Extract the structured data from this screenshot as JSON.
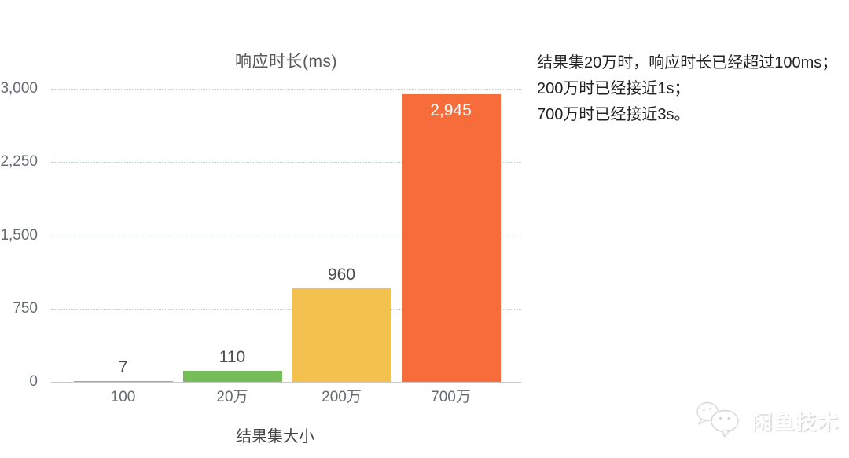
{
  "chart_data": {
    "type": "bar",
    "title": "响应时长(ms)",
    "xlabel": "结果集大小",
    "ylabel": "",
    "categories": [
      "100",
      "20万",
      "200万",
      "700万"
    ],
    "values": [
      7,
      110,
      960,
      2945
    ],
    "value_labels": [
      "7",
      "110",
      "960",
      "2,945"
    ],
    "bar_colors": [
      "#7bafde",
      "#76bc58",
      "#f2c14e",
      "#f66c3b"
    ],
    "label_inside": [
      false,
      false,
      false,
      true
    ],
    "ylim": [
      0,
      3000
    ],
    "ytick_values": [
      3000,
      2250,
      1500,
      750,
      0
    ],
    "ytick_labels": [
      "3,000",
      "2,250",
      "1,500",
      "750",
      "0"
    ],
    "grid": "horizontal-dotted",
    "legend": "none"
  },
  "annotation": {
    "lines": [
      "结果集20万时，响应时长已经超过100ms；",
      "200万时已经接近1s；",
      "700万时已经接近3s。"
    ]
  },
  "watermark": {
    "text": "闲鱼技术",
    "icon": "chat-bubbles-icon"
  }
}
